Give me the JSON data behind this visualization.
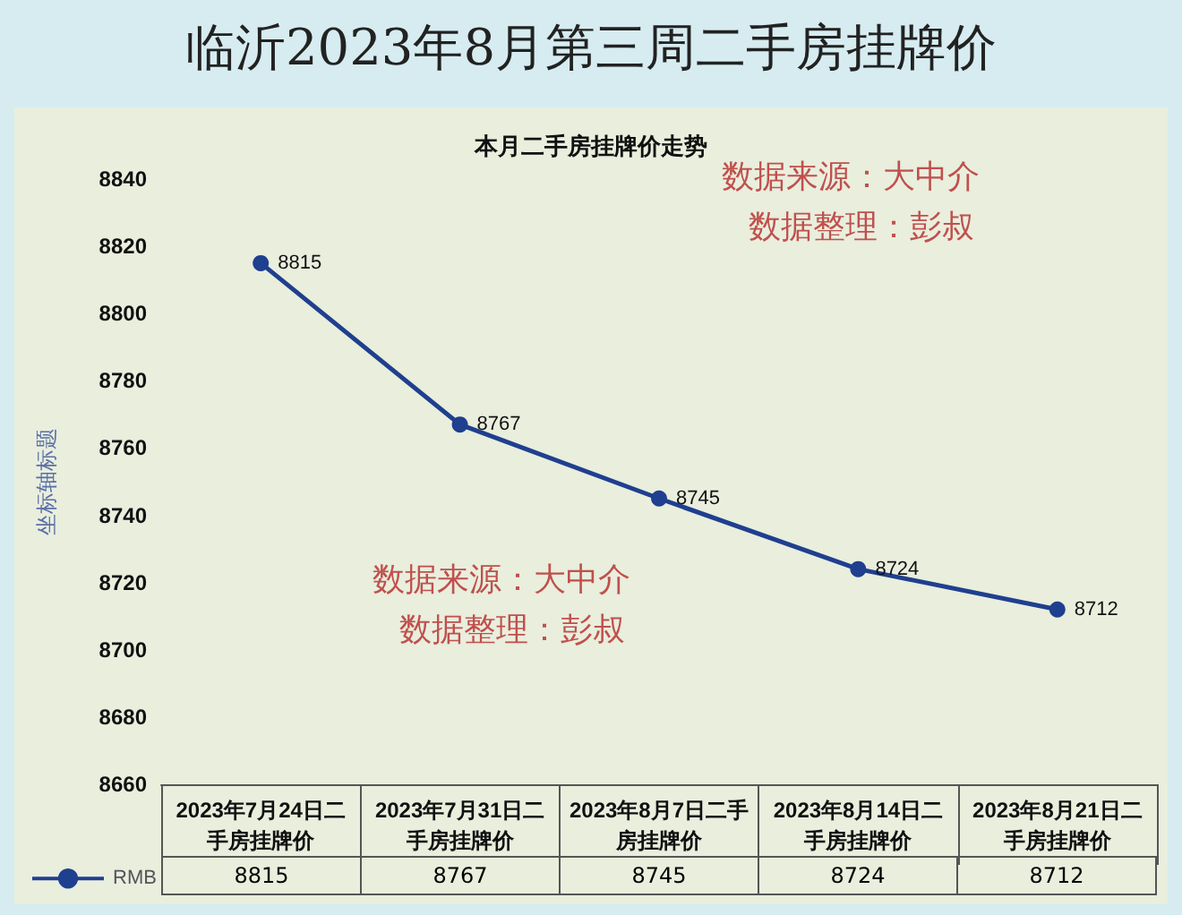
{
  "chart_data": {
    "type": "line",
    "title": "临沂2023年8月第三周二手房挂牌价",
    "subtitle": "本月二手房挂牌价走势",
    "ylabel": "坐标轴标题",
    "categories": [
      "2023年7月24日二手房挂牌价",
      "2023年7月31日二手房挂牌价",
      "2023年8月7日二手房挂牌价",
      "2023年8月14日二手房挂牌价",
      "2023年8月21日二手房挂牌价"
    ],
    "series": [
      {
        "name": "RMB",
        "color": "#1f3f8f",
        "values": [
          8815,
          8767,
          8745,
          8724,
          8712
        ],
        "value_labels": [
          "8815",
          "8767",
          "8745",
          "8724",
          "8712"
        ]
      }
    ],
    "ylim": [
      8660,
      8840
    ],
    "yticks": [
      8660,
      8680,
      8700,
      8720,
      8740,
      8760,
      8780,
      8800,
      8820,
      8840
    ],
    "marker": "circle",
    "line_style": "solid",
    "grid": false,
    "legend": "bottom left",
    "annotations": [
      "数据来源：大中介",
      "数据整理：彭叔",
      "数据来源：大中介",
      "数据整理：彭叔",
      {
        "text": "8815",
        "x": "2023年7月24日二手房挂牌价"
      },
      {
        "text": "8767",
        "x": "2023年7月31日二手房挂牌价"
      },
      {
        "text": "8745",
        "x": "2023年8月7日二手房挂牌价"
      },
      {
        "text": "8724",
        "x": "2023年8月14日二手房挂牌价"
      },
      {
        "text": "8712",
        "x": "2023年8月21日二手房挂牌价"
      }
    ]
  }
}
